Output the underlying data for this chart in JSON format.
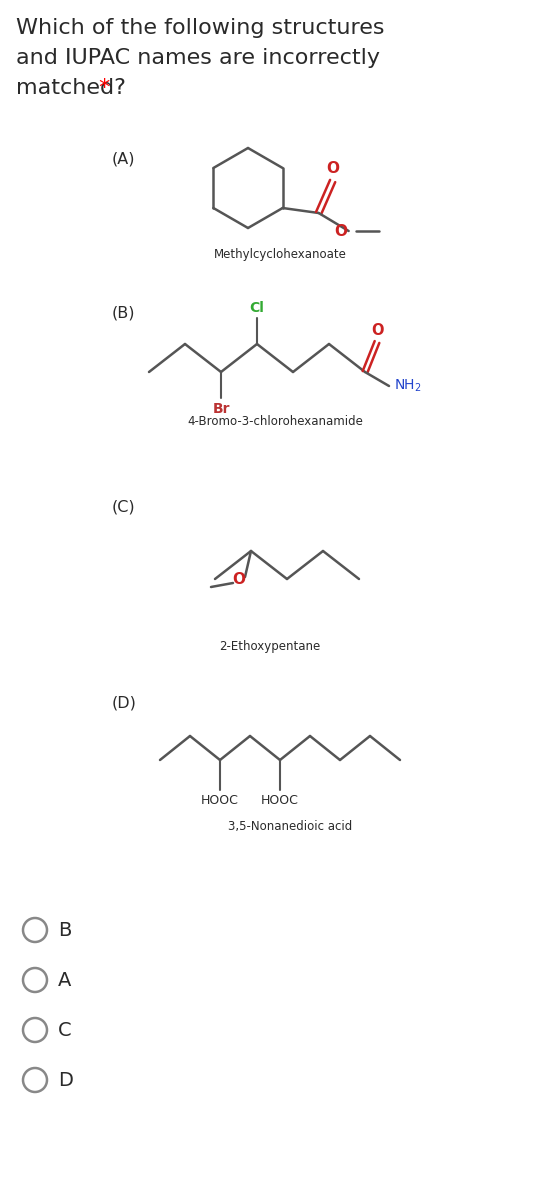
{
  "title_line1": "Which of the following structures",
  "title_line2": "and IUPAC names are incorrectly",
  "title_line3": "matched? ",
  "title_star": "*",
  "bg_color": "#ffffff",
  "text_color": "#2a2a2a",
  "bond_color": "#555555",
  "oxygen_color": "#cc2222",
  "nitrogen_color": "#2244cc",
  "chlorine_color": "#33aa33",
  "bromine_color": "#bb3333",
  "options": [
    "B",
    "A",
    "C",
    "D"
  ],
  "labels": [
    "(A)",
    "(B)",
    "(C)",
    "(D)"
  ],
  "names": [
    "Methylcyclohexanoate",
    "4-Bromo-3-chlorohexanamide",
    "2-Ethoxypentane",
    "3,5-Nonanedioic acid"
  ]
}
